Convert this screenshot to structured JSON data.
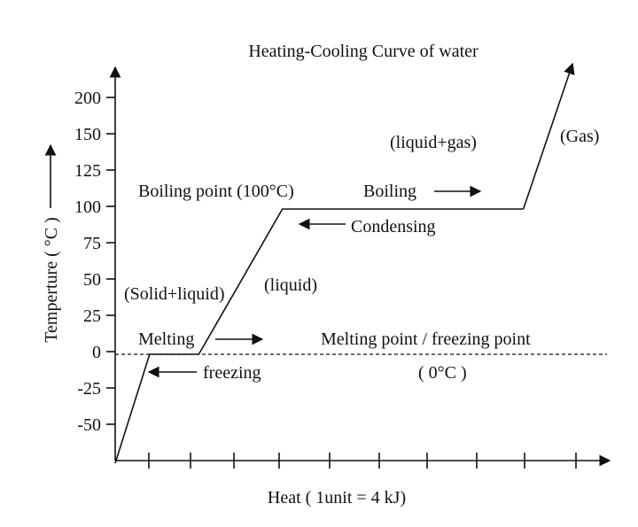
{
  "chart_data": {
    "type": "line",
    "title": "Heating-Cooling Curve of water",
    "xlabel": "Heat  ( 1unit = 4 kJ)",
    "ylabel": "Temperture ( °C )",
    "yticks": [
      "200",
      "150",
      "125",
      "100",
      "75",
      "50",
      "25",
      "0",
      "-25",
      "-50"
    ],
    "series": [
      {
        "x": [
          0,
          0.7,
          1.7,
          3.4,
          8.3,
          9.3
        ],
        "y": [
          "-75",
          "0",
          "0",
          "100",
          "100",
          "200"
        ]
      }
    ],
    "reference_line": {
      "y": 0,
      "style": "dashed"
    },
    "annotations": {
      "boiling_point": "Boiling point (100°C)",
      "liquid_gas": "(liquid+gas)",
      "gas": "(Gas)",
      "boiling": "Boiling",
      "condensing": "Condensing",
      "solid_liquid": "(Solid+liquid)",
      "liquid": "(liquid)",
      "melting": "Melting",
      "freezing": "freezing",
      "melting_point": "Melting point / freezing point",
      "zero_c": "( 0°C )"
    },
    "grid": false
  }
}
